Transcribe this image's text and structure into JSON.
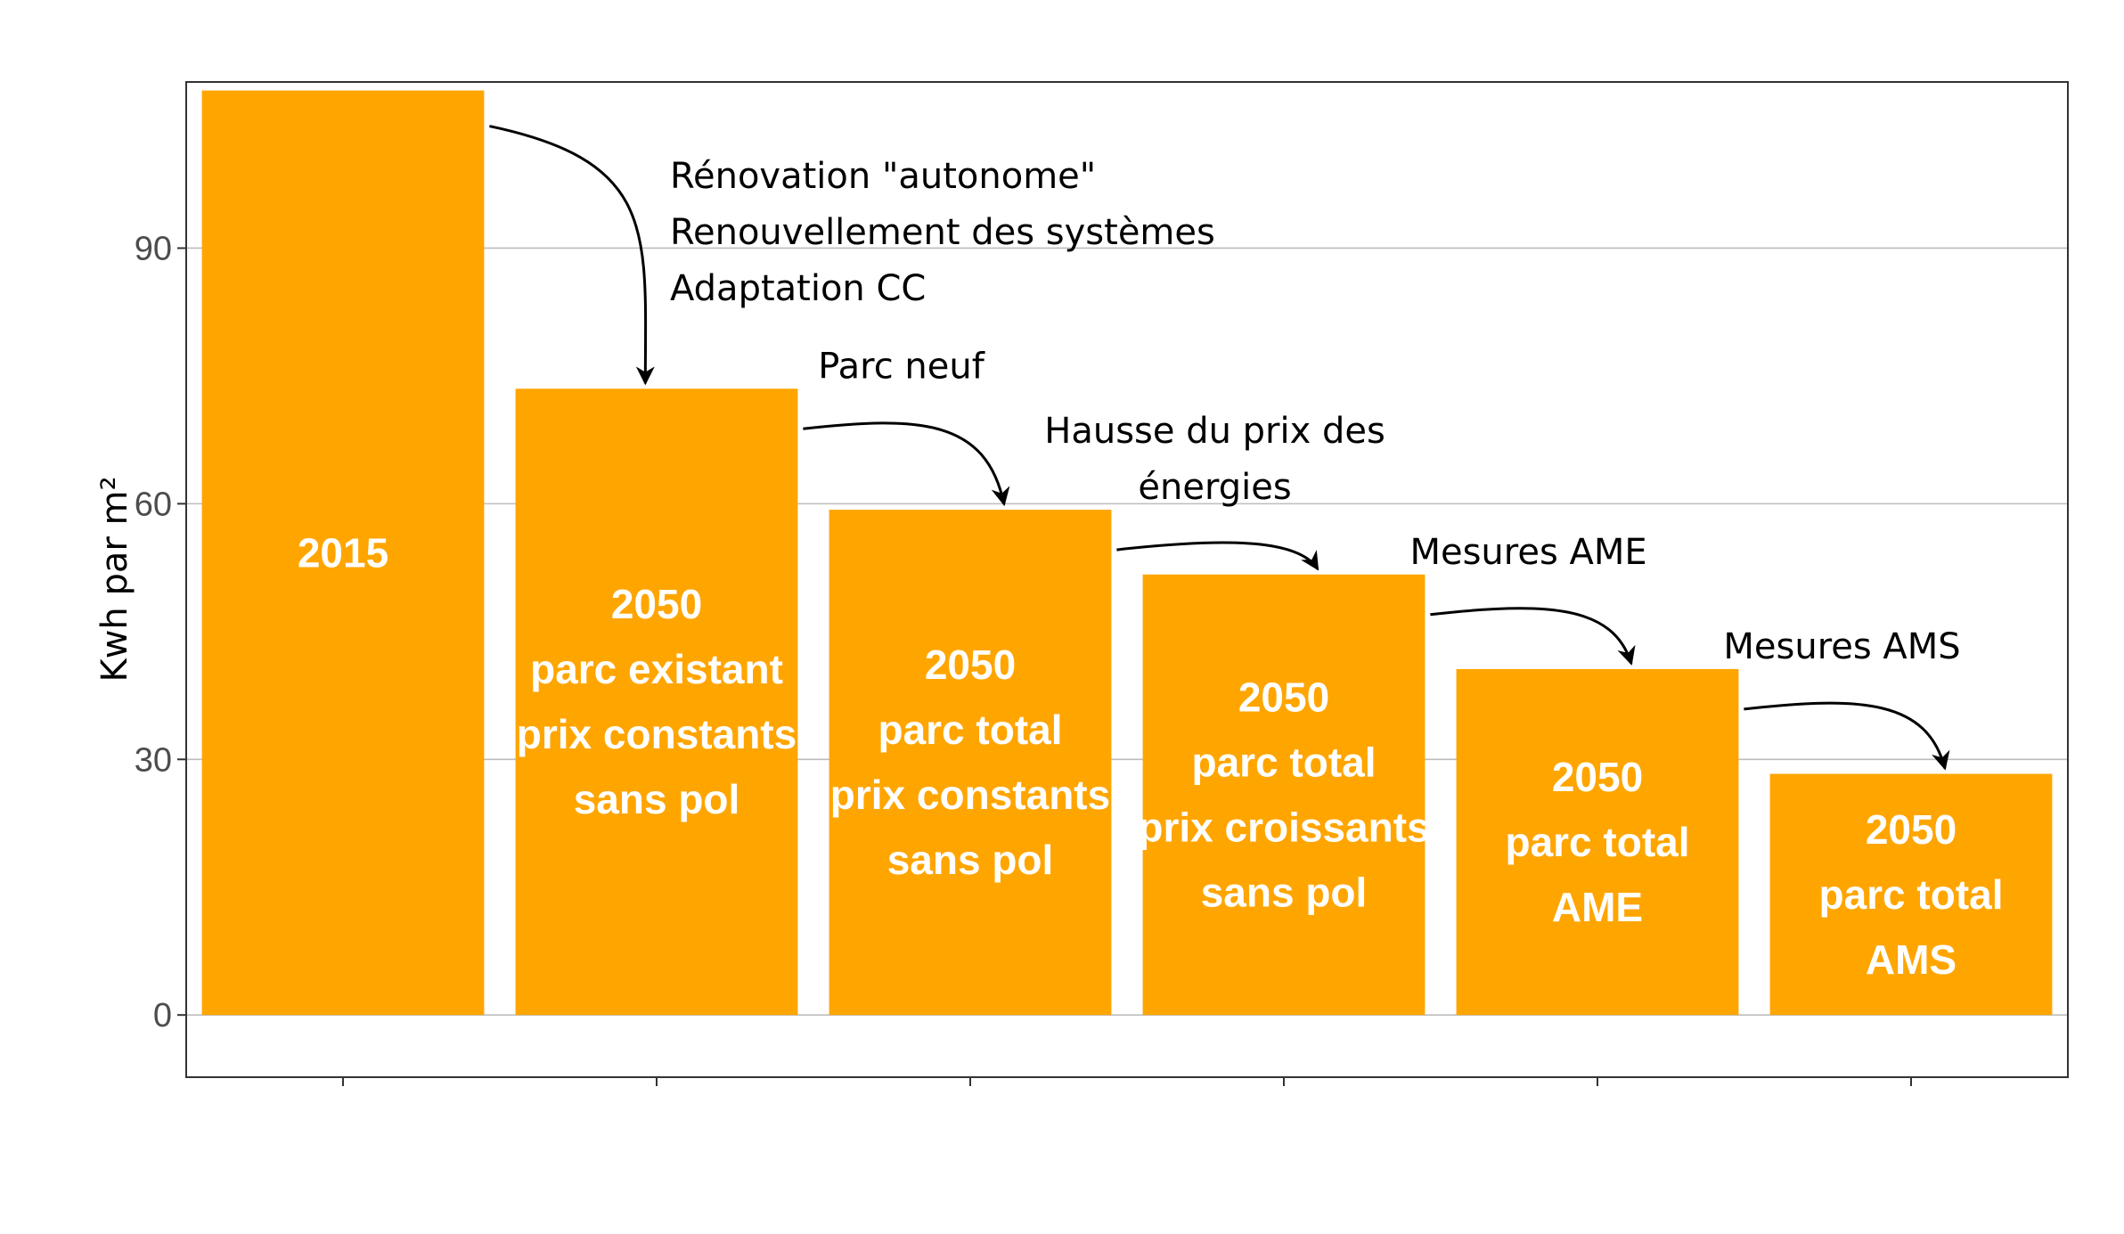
{
  "chart_data": {
    "type": "bar",
    "ylabel": "Kwh par m²",
    "ylim": [
      -7.3,
      109.5
    ],
    "yticks": [
      0,
      30,
      60,
      90
    ],
    "grid": true,
    "categories": [
      "2015",
      "2050 parc existant prix constants sans pol",
      "2050 parc total prix constants sans pol",
      "2050 parc total prix croissants sans pol",
      "2050 parc total AME",
      "2050 parc total AMS"
    ],
    "bar_labels": [
      [
        "2015"
      ],
      [
        "2050",
        "parc existant",
        "prix constants",
        "sans pol"
      ],
      [
        "2050",
        "parc total",
        "prix constants",
        "sans pol"
      ],
      [
        "2050",
        "parc total",
        "prix croissants",
        "sans pol"
      ],
      [
        "2050",
        "parc total",
        "AME"
      ],
      [
        "2050",
        "parc total",
        "AMS"
      ]
    ],
    "values": [
      108.5,
      73.5,
      59.3,
      51.7,
      40.6,
      28.3
    ],
    "bar_color": "#FFA500",
    "annotations": [
      {
        "from": 0,
        "to": 1,
        "lines": [
          "Rénovation \"autonome\"",
          "Renouvellement des systèmes",
          "Adaptation CC"
        ]
      },
      {
        "from": 1,
        "to": 2,
        "lines": [
          "Parc neuf"
        ]
      },
      {
        "from": 2,
        "to": 3,
        "lines": [
          "Hausse du prix des",
          "énergies"
        ]
      },
      {
        "from": 3,
        "to": 4,
        "lines": [
          "Mesures AME"
        ]
      },
      {
        "from": 4,
        "to": 5,
        "lines": [
          "Mesures AMS"
        ]
      }
    ]
  }
}
